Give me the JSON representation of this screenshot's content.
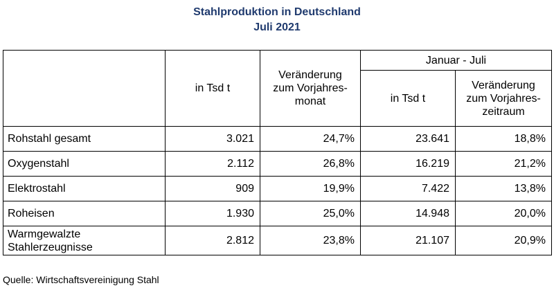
{
  "chart_data": {
    "type": "table",
    "title": "Stahlproduktion in Deutschland",
    "subtitle": "Juli 2021",
    "header": {
      "group_label": "Januar - Juli",
      "month_value_label": "in Tsd t",
      "month_change_label": [
        "Veränderung",
        "zum Vorjahres-",
        "monat"
      ],
      "period_value_label": "in Tsd t",
      "period_change_label": [
        "Veränderung",
        "zum Vorjahres-",
        "zeitraum"
      ]
    },
    "rows": [
      {
        "label": [
          "Rohstahl gesamt"
        ],
        "month_value": "3.021",
        "month_change": "24,7%",
        "period_value": "23.641",
        "period_change": "18,8%"
      },
      {
        "label": [
          "Oxygenstahl"
        ],
        "month_value": "2.112",
        "month_change": "26,8%",
        "period_value": "16.219",
        "period_change": "21,2%"
      },
      {
        "label": [
          "Elektrostahl"
        ],
        "month_value": "909",
        "month_change": "19,9%",
        "period_value": "7.422",
        "period_change": "13,8%"
      },
      {
        "label": [
          "Roheisen"
        ],
        "month_value": "1.930",
        "month_change": "25,0%",
        "period_value": "14.948",
        "period_change": "20,0%"
      },
      {
        "label": [
          "Warmgewalzte",
          "Stahlerzeugnisse"
        ],
        "month_value": "2.812",
        "month_change": "23,8%",
        "period_value": "21.107",
        "period_change": "20,9%"
      }
    ],
    "source": "Quelle: Wirtschaftsvereinigung Stahl"
  }
}
